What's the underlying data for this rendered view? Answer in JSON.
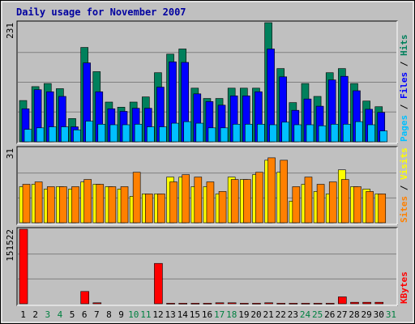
{
  "chart_data": {
    "type": "bar",
    "title": "Daily usage for November 2007",
    "categories": [
      "1",
      "2",
      "3",
      "4",
      "5",
      "6",
      "7",
      "8",
      "9",
      "10",
      "11",
      "12",
      "13",
      "14",
      "15",
      "16",
      "17",
      "18",
      "19",
      "20",
      "21",
      "22",
      "23",
      "24",
      "25",
      "26",
      "27",
      "28",
      "29",
      "30",
      "31"
    ],
    "weekend_days": [
      "3",
      "4",
      "10",
      "11",
      "17",
      "18",
      "24",
      "25",
      "31"
    ],
    "colors": {
      "background": "#c0c0c0",
      "plot": "#c0c0c0",
      "title": "#0000a0",
      "hits": "#00805c",
      "files": "#0000ff",
      "pages": "#00c0ff",
      "visits": "#ffff00",
      "sites": "#ff8000",
      "kbytes": "#ff0000",
      "weekend": "#008040",
      "weekday": "#000000",
      "slash": "#000000"
    },
    "panels": [
      {
        "id": "pages-files-hits",
        "ymax_label": "231",
        "ymax": 231,
        "legend": [
          {
            "label": "Pages",
            "color": "#00c0ff"
          },
          {
            "label": "Files",
            "color": "#0000ff"
          },
          {
            "label": "Hits",
            "color": "#00805c"
          }
        ],
        "series": [
          {
            "key": "hits",
            "values": [
              80,
              107,
              113,
              103,
              45,
              183,
              136,
              77,
              67,
              77,
              87,
              134,
              170,
              180,
              104,
              84,
              84,
              104,
              104,
              104,
              231,
              142,
              76,
              113,
              88,
              134,
              142,
              113,
              79,
              68,
              0
            ]
          },
          {
            "key": "files",
            "values": [
              64,
              101,
              97,
              88,
              29,
              153,
              97,
              64,
              59,
              65,
              65,
              106,
              155,
              154,
              93,
              78,
              71,
              89,
              89,
              97,
              180,
              126,
              61,
              83,
              69,
              120,
              127,
              99,
              63,
              57,
              0
            ]
          },
          {
            "key": "pages",
            "values": [
              24,
              27,
              29,
              29,
              23,
              40,
              34,
              33,
              33,
              34,
              29,
              29,
              36,
              39,
              36,
              27,
              27,
              34,
              34,
              34,
              33,
              38,
              33,
              33,
              31,
              34,
              34,
              39,
              33,
              21,
              0
            ]
          }
        ]
      },
      {
        "id": "sites-visits",
        "ymax_label": "31",
        "ymax": 31,
        "legend": [
          {
            "label": "Sites",
            "color": "#ff8000"
          },
          {
            "label": "Visits",
            "color": "#ffff00"
          }
        ],
        "series": [
          {
            "key": "visits",
            "values": [
              15,
              16,
              14,
              15,
              14,
              17,
              16,
              15,
              14,
              11,
              12,
              12,
              19,
              19,
              15,
              15,
              12,
              19,
              18,
              20,
              26,
              21,
              9,
              16,
              13,
              12,
              22,
              15,
              14,
              12,
              0
            ]
          },
          {
            "key": "sites",
            "values": [
              16,
              17,
              15,
              15,
              15,
              18,
              16,
              15,
              15,
              21,
              12,
              12,
              17,
              20,
              19,
              17,
              13,
              18,
              18,
              21,
              27,
              26,
              15,
              19,
              16,
              17,
              18,
              15,
              13,
              12,
              0
            ]
          }
        ]
      },
      {
        "id": "kbytes",
        "ymax_label": "151522",
        "ymax": 151522,
        "legend": [
          {
            "label": "KBytes",
            "color": "#ff0000"
          }
        ],
        "series": [
          {
            "key": "kbytes",
            "values": [
              151522,
              0,
              0,
              0,
              0,
              25000,
              2000,
              0,
              0,
              0,
              0,
              82000,
              1000,
              1000,
              1000,
              1000,
              2000,
              2000,
              1000,
              1000,
              2000,
              1000,
              1000,
              1000,
              1000,
              1000,
              14000,
              3000,
              3000,
              3000,
              0
            ]
          }
        ]
      }
    ]
  }
}
